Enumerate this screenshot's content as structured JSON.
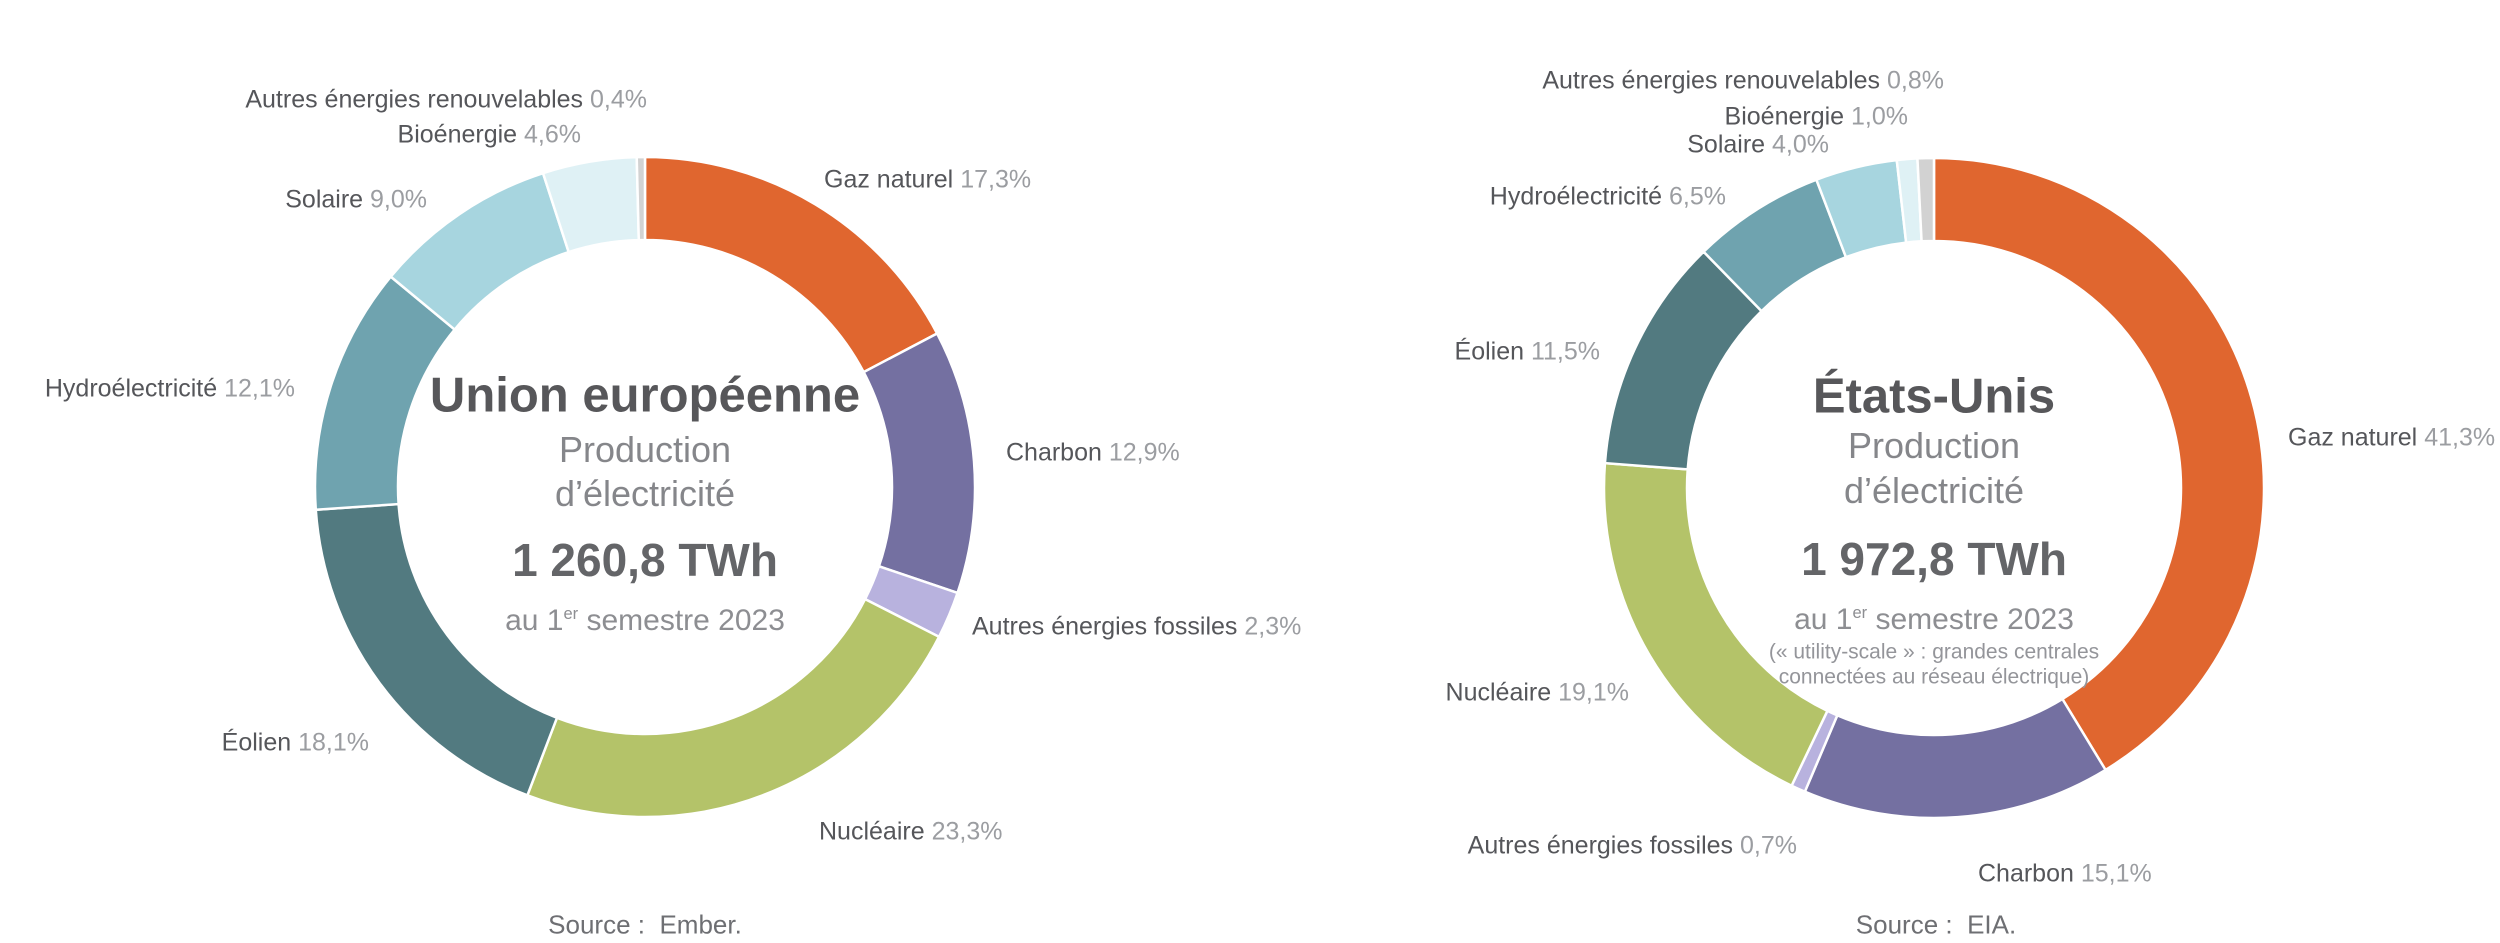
{
  "chart_data": [
    {
      "type": "donut",
      "region": "Union européenne",
      "title": "Union européenne",
      "subtitle_line1": "Production",
      "subtitle_line2": "d’électricité",
      "total": "1 260,8 TWh",
      "period": {
        "prefix": "au 1",
        "sup": "er",
        "suffix": " semestre 2023"
      },
      "note_line1": "",
      "note_line2": "",
      "source": "Source :  Ember.",
      "unit": "%",
      "start_angle_deg": 0,
      "direction": "clockwise",
      "legend_position": "around",
      "slices": [
        {
          "label": "Gaz naturel",
          "value": 17.3,
          "value_text": "17,3%",
          "color": "#e0662f"
        },
        {
          "label": "Charbon",
          "value": 12.9,
          "value_text": "12,9%",
          "color": "#7470a1"
        },
        {
          "label": "Autres énergies fossiles",
          "value": 2.3,
          "value_text": "2,3%",
          "color": "#b8b2de"
        },
        {
          "label": "Nucléaire",
          "value": 23.3,
          "value_text": "23,3%",
          "color": "#b4c369"
        },
        {
          "label": "Éolien",
          "value": 18.1,
          "value_text": "18,1%",
          "color": "#527a80"
        },
        {
          "label": "Hydroélectricité",
          "value": 12.1,
          "value_text": "12,1%",
          "color": "#6fa3af"
        },
        {
          "label": "Solaire",
          "value": 9.0,
          "value_text": "9,0%",
          "color": "#a7d5df"
        },
        {
          "label": "Bioénergie",
          "value": 4.6,
          "value_text": "4,6%",
          "color": "#dff1f5"
        },
        {
          "label": "Autres énergies renouvelables",
          "value": 0.4,
          "value_text": "0,4%",
          "color": "#d2d2d2"
        }
      ]
    },
    {
      "type": "donut",
      "region": "États-Unis",
      "title": "États-Unis",
      "subtitle_line1": "Production",
      "subtitle_line2": "d’électricité",
      "total": "1 972,8 TWh",
      "period": {
        "prefix": "au 1",
        "sup": "er",
        "suffix": " semestre 2023"
      },
      "note_line1": "(« utility-scale » : grandes centrales",
      "note_line2": "connectées au réseau électrique)",
      "source": "Source :  EIA.",
      "unit": "%",
      "start_angle_deg": 0,
      "direction": "clockwise",
      "legend_position": "around",
      "slices": [
        {
          "label": "Gaz naturel",
          "value": 41.3,
          "value_text": "41,3%",
          "color": "#e0662f"
        },
        {
          "label": "Charbon",
          "value": 15.1,
          "value_text": "15,1%",
          "color": "#7470a1"
        },
        {
          "label": "Autres énergies fossiles",
          "value": 0.7,
          "value_text": "0,7%",
          "color": "#b8b2de"
        },
        {
          "label": "Nucléaire",
          "value": 19.1,
          "value_text": "19,1%",
          "color": "#b4c369"
        },
        {
          "label": "Éolien",
          "value": 11.5,
          "value_text": "11,5%",
          "color": "#527a80"
        },
        {
          "label": "Hydroélectricité",
          "value": 6.5,
          "value_text": "6,5%",
          "color": "#6fa3af"
        },
        {
          "label": "Solaire",
          "value": 4.0,
          "value_text": "4,0%",
          "color": "#a7d5df"
        },
        {
          "label": "Bioénergie",
          "value": 1.0,
          "value_text": "1,0%",
          "color": "#dff1f5"
        },
        {
          "label": "Autres énergies renouvelables",
          "value": 0.8,
          "value_text": "0,8%",
          "color": "#d2d2d2"
        }
      ]
    }
  ]
}
